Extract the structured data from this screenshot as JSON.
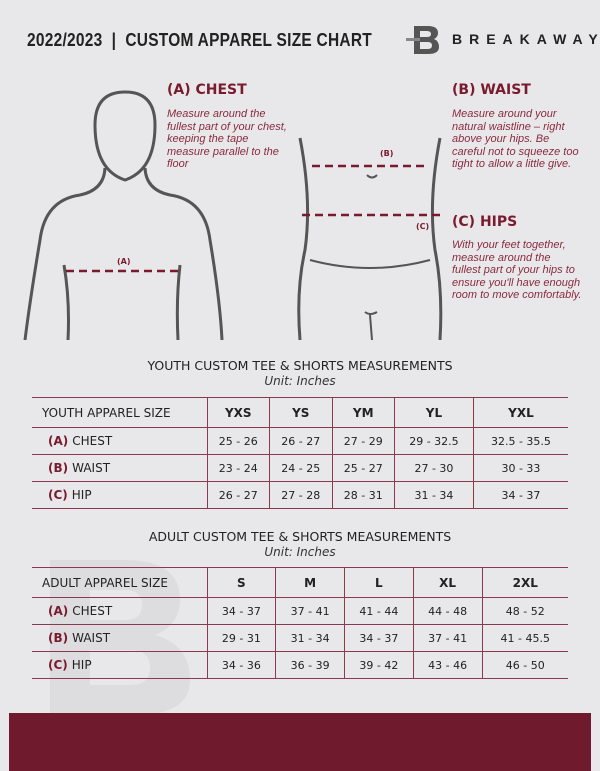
{
  "header": {
    "title": "2022/2023  |  CUSTOM APPAREL SIZE CHART",
    "brand": "BREAKAWAY",
    "logo_letter": "B"
  },
  "guide": {
    "chest": {
      "title": "(A) CHEST",
      "text": "Measure around the fullest part of your chest, keeping the tape measure parallel to the floor",
      "marker": "(A)"
    },
    "waist": {
      "title": "(B) WAIST",
      "text": "Measure around your natural waistline – right above your hips. Be careful not to squeeze too tight to allow a little give.",
      "marker": "(B)"
    },
    "hips": {
      "title": "(C) HIPS",
      "text": "With your feet together, measure around the fullest part of your hips to ensure you'll have enough room to move comfortably.",
      "marker": "(C)"
    }
  },
  "youth": {
    "title": "YOUTH CUSTOM TEE & SHORTS MEASUREMENTS",
    "unit": "Unit: Inches",
    "header": "YOUTH APPAREL SIZE",
    "sizes": [
      "YXS",
      "YS",
      "YM",
      "YL",
      "YXL"
    ],
    "rows": [
      {
        "code": "(A)",
        "label": "CHEST",
        "values": [
          "25 - 26",
          "26 - 27",
          "27 - 29",
          "29 - 32.5",
          "32.5 - 35.5"
        ]
      },
      {
        "code": "(B)",
        "label": "WAIST",
        "values": [
          "23 - 24",
          "24 - 25",
          "25 - 27",
          "27 - 30",
          "30 - 33"
        ]
      },
      {
        "code": "(C)",
        "label": "HIP",
        "values": [
          "26 - 27",
          "27 - 28",
          "28 - 31",
          "31 - 34",
          "34 - 37"
        ]
      }
    ]
  },
  "adult": {
    "title": "ADULT CUSTOM TEE & SHORTS MEASUREMENTS",
    "unit": "Unit: Inches",
    "header": "ADULT APPAREL SIZE",
    "sizes": [
      "S",
      "M",
      "L",
      "XL",
      "2XL"
    ],
    "rows": [
      {
        "code": "(A)",
        "label": "CHEST",
        "values": [
          "34 - 37",
          "37 - 41",
          "41 - 44",
          "44 - 48",
          "48 - 52"
        ]
      },
      {
        "code": "(B)",
        "label": "WAIST",
        "values": [
          "29 - 31",
          "31 - 34",
          "34 - 37",
          "37 - 41",
          "41 - 45.5"
        ]
      },
      {
        "code": "(C)",
        "label": "HIP",
        "values": [
          "34 - 36",
          "36 - 39",
          "39 - 42",
          "43 - 46",
          "46 - 50"
        ]
      }
    ]
  },
  "colors": {
    "accent": "#701a2e",
    "background": "#e8e8ea"
  }
}
